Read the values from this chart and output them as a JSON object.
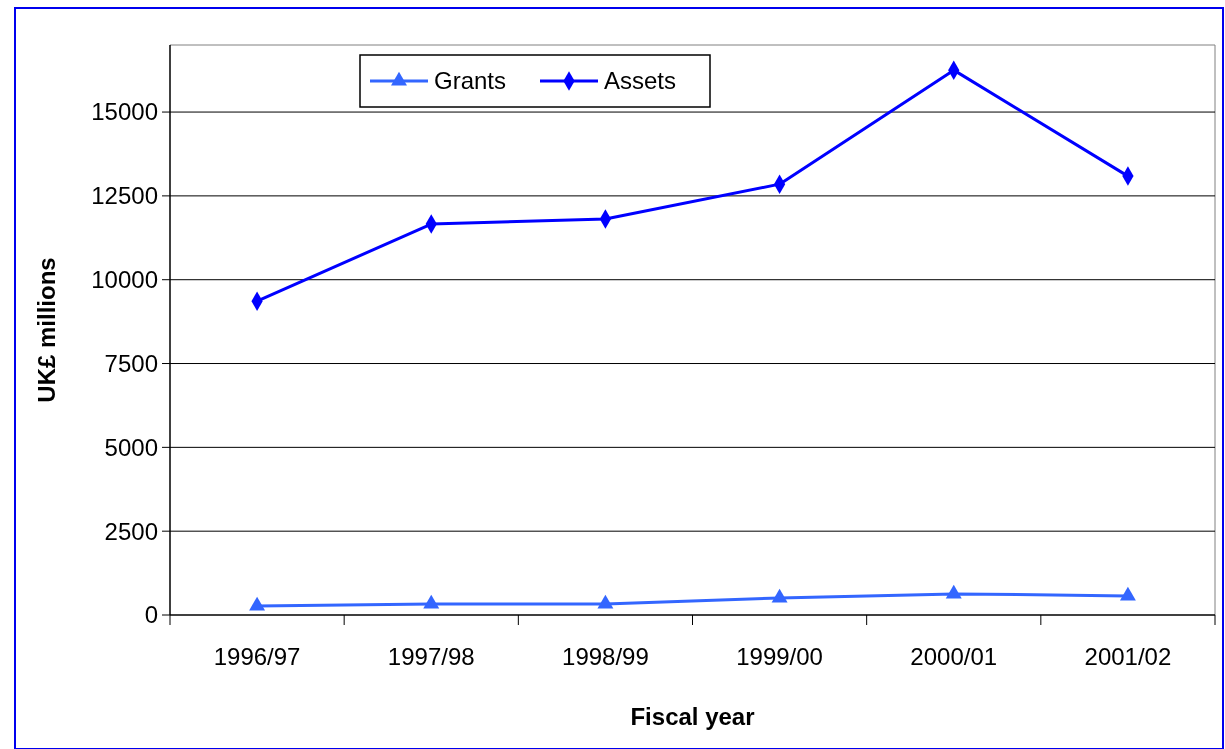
{
  "chart_data": {
    "type": "line",
    "xlabel": "Fiscal year",
    "ylabel": "UK£ millions",
    "categories": [
      "1996/97",
      "1997/98",
      "1998/99",
      "1999/00",
      "2000/01",
      "2001/02"
    ],
    "series": [
      {
        "name": "Grants",
        "color": "#3366ff",
        "marker": "triangle",
        "values": [
          270,
          330,
          330,
          510,
          630,
          570
        ]
      },
      {
        "name": "Assets",
        "color": "#0000ff",
        "marker": "diamond",
        "values": [
          9360,
          11660,
          11810,
          12850,
          16250,
          13090
        ]
      }
    ],
    "ylim": [
      0,
      17000
    ],
    "yticks": [
      0,
      2500,
      5000,
      7500,
      10000,
      12500,
      15000
    ],
    "grid": "y",
    "legend": "top",
    "line_style": "solid"
  }
}
